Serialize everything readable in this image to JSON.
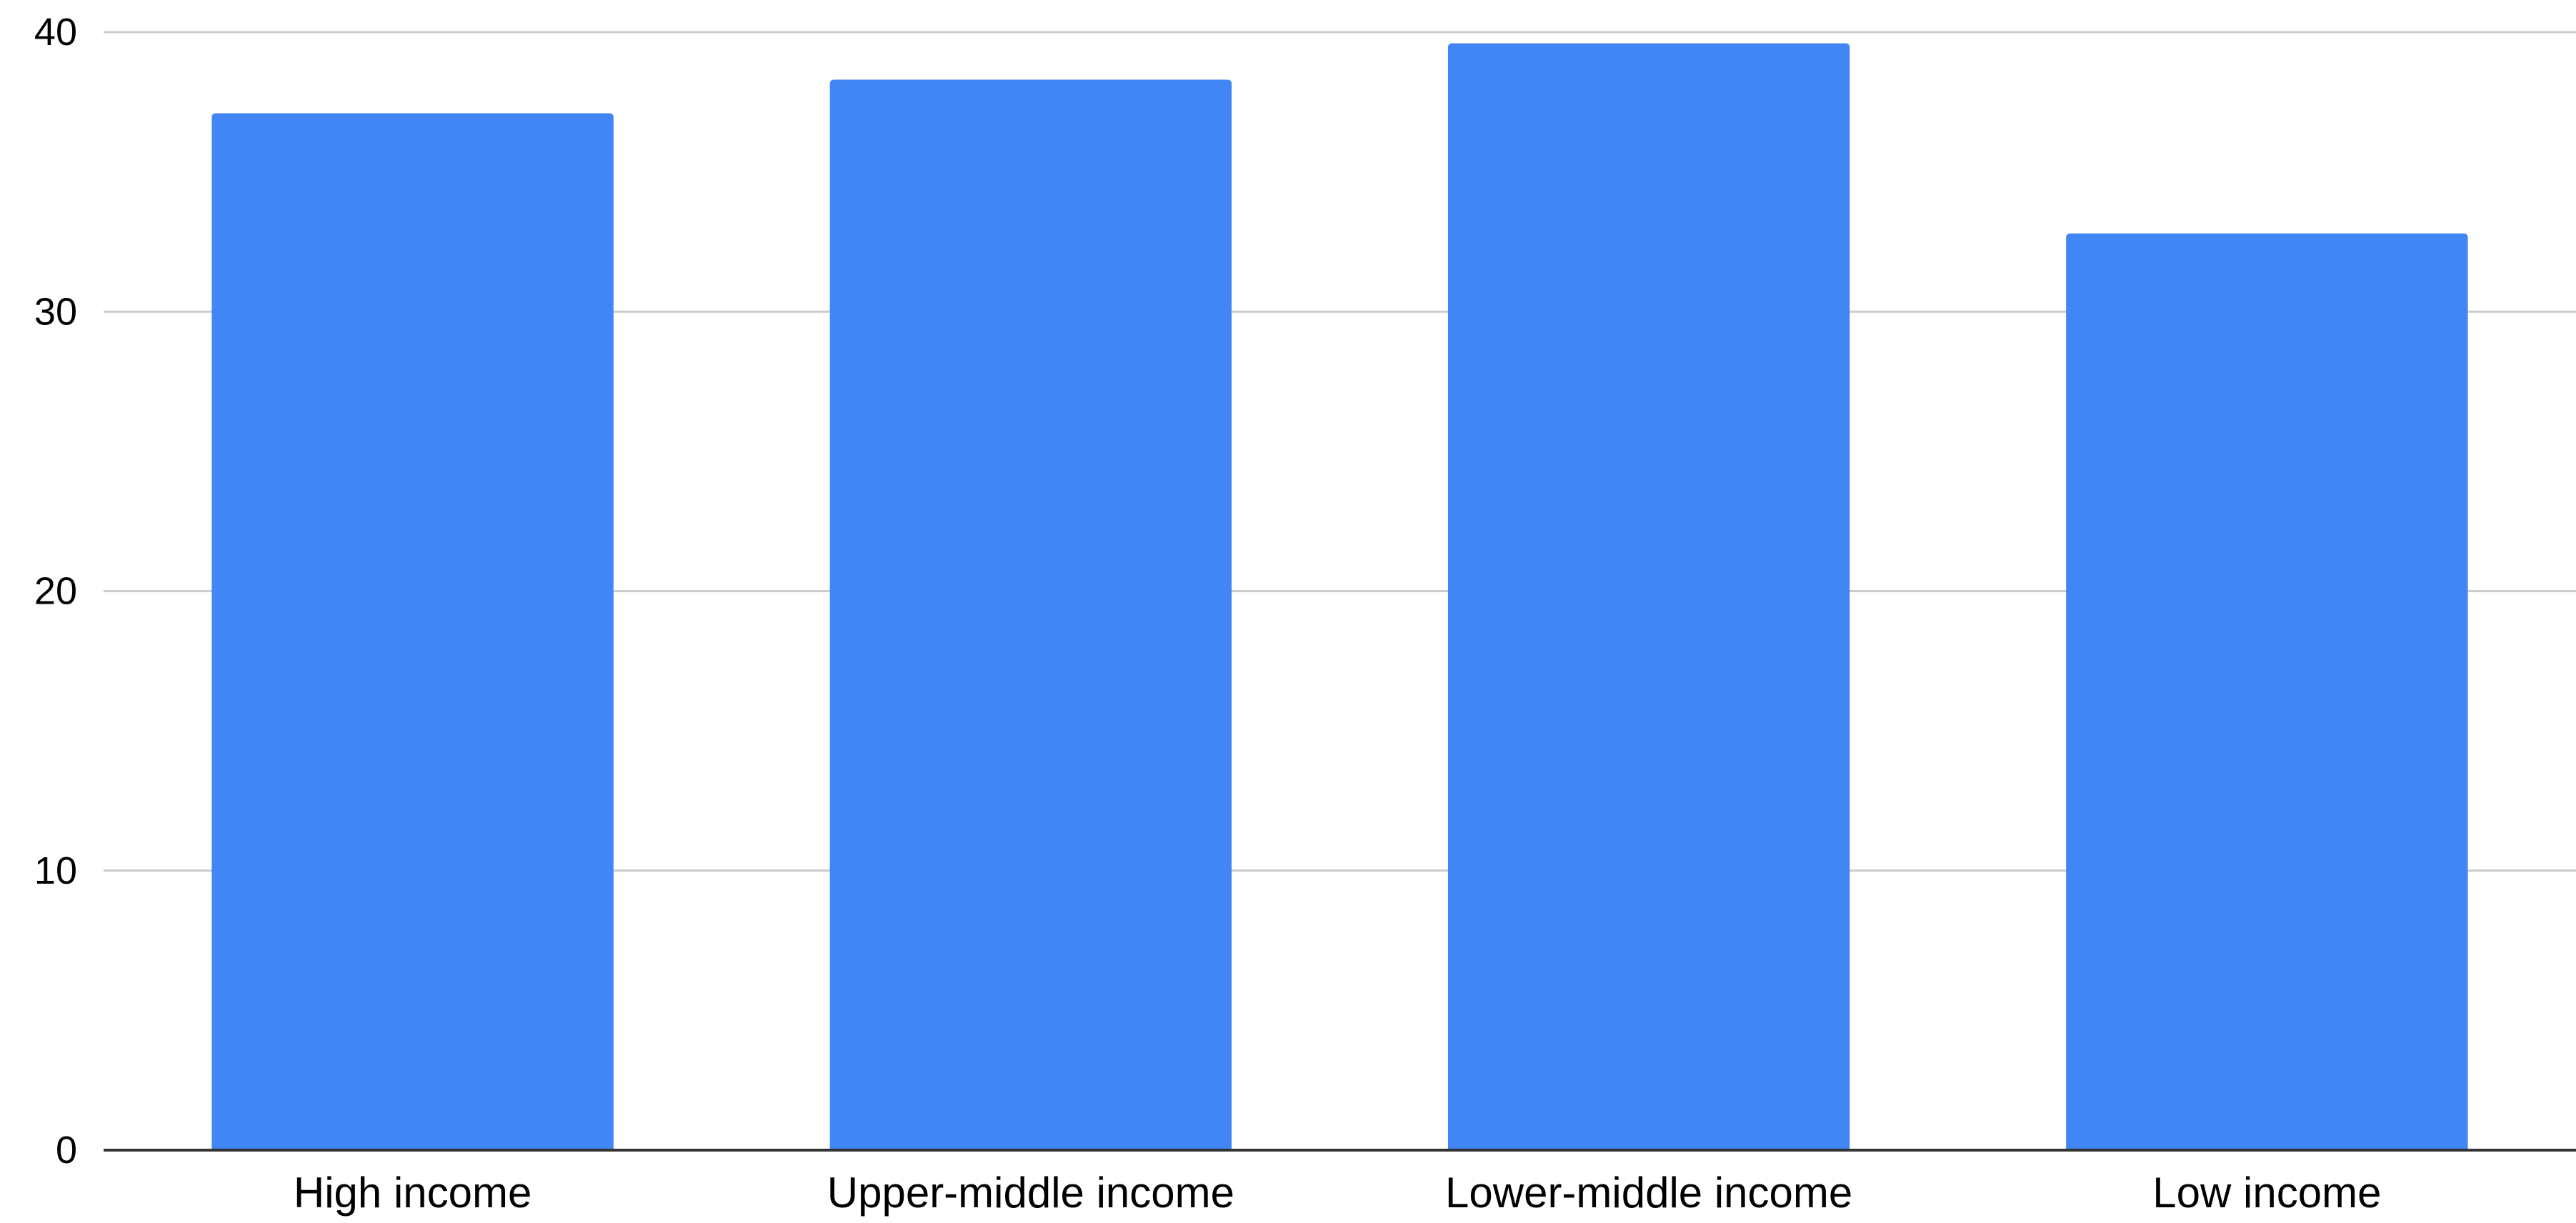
{
  "chart_data": {
    "type": "bar",
    "title": "",
    "xlabel": "",
    "ylabel": "",
    "categories": [
      "High income",
      "Upper-middle income",
      "Lower-middle income",
      "Low income"
    ],
    "values": [
      37.1,
      38.3,
      39.6,
      32.8
    ],
    "ylim": [
      0,
      40
    ],
    "yticks": [
      0,
      10,
      20,
      30,
      40
    ],
    "ytick_labels": [
      "0",
      "10",
      "20",
      "30",
      "40"
    ],
    "grid": true,
    "legend": "none",
    "bar_color": "#4285F4",
    "grid_color": "#CCCCCC",
    "axis_color": "#333333"
  }
}
